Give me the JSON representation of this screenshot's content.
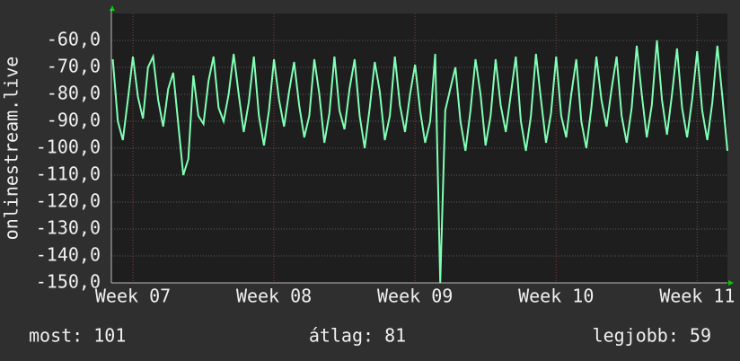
{
  "chart_data": {
    "type": "line",
    "y_label": "onlinestream.live",
    "xlim": [
      -1.07,
      29.5
    ],
    "xticks": [
      {
        "value": 0,
        "label": "Week 07"
      },
      {
        "value": 7,
        "label": "Week 08"
      },
      {
        "value": 14,
        "label": "Week 09"
      },
      {
        "value": 21,
        "label": "Week 10"
      },
      {
        "value": 28,
        "label": "Week 11"
      }
    ],
    "ylim": [
      -150,
      -50
    ],
    "yticks": [
      {
        "value": -150,
        "label": "-150,0"
      },
      {
        "value": -140,
        "label": "-140,0"
      },
      {
        "value": -130,
        "label": "-130,0"
      },
      {
        "value": -120,
        "label": "-120,0"
      },
      {
        "value": -110,
        "label": "-110,0"
      },
      {
        "value": -100,
        "label": "-100,0"
      },
      {
        "value": -90,
        "label": "-90,0"
      },
      {
        "value": -80,
        "label": "-80,0"
      },
      {
        "value": -70,
        "label": "-70,0"
      },
      {
        "value": -60,
        "label": "-60,0"
      }
    ],
    "grid": true,
    "x": [
      -1,
      -0.75,
      -0.5,
      -0.25,
      0,
      0.25,
      0.5,
      0.75,
      1,
      1.25,
      1.5,
      1.75,
      2,
      2.25,
      2.5,
      2.75,
      3,
      3.25,
      3.5,
      3.75,
      4,
      4.25,
      4.5,
      4.75,
      5,
      5.25,
      5.5,
      5.75,
      6,
      6.25,
      6.5,
      6.75,
      7,
      7.25,
      7.5,
      7.75,
      8,
      8.25,
      8.5,
      8.75,
      9,
      9.25,
      9.5,
      9.75,
      10,
      10.25,
      10.5,
      10.75,
      11,
      11.25,
      11.5,
      11.75,
      12,
      12.25,
      12.5,
      12.75,
      13,
      13.25,
      13.5,
      13.75,
      14,
      14.25,
      14.5,
      14.75,
      15,
      15.25,
      15.5,
      15.75,
      16,
      16.25,
      16.5,
      16.75,
      17,
      17.25,
      17.5,
      17.75,
      18,
      18.25,
      18.5,
      18.75,
      19,
      19.25,
      19.5,
      19.75,
      20,
      20.25,
      20.5,
      20.75,
      21,
      21.25,
      21.5,
      21.75,
      22,
      22.25,
      22.5,
      22.75,
      23,
      23.25,
      23.5,
      23.75,
      24,
      24.25,
      24.5,
      24.75,
      25,
      25.25,
      25.5,
      25.75,
      26,
      26.25,
      26.5,
      26.75,
      27,
      27.25,
      27.5,
      27.75,
      28,
      28.25,
      28.5,
      28.75,
      29,
      29.25,
      29.5
    ],
    "series": [
      {
        "color": "#80ffb4",
        "values": [
          -67,
          -90,
          -97,
          -82,
          -66,
          -81,
          -89,
          -70,
          -66,
          -82,
          -92,
          -78,
          -72,
          -91,
          -110,
          -104,
          -73,
          -88,
          -91,
          -75,
          -66,
          -85,
          -90,
          -80,
          -65,
          -80,
          -94,
          -83,
          -66,
          -88,
          -99,
          -86,
          -67,
          -82,
          -92,
          -79,
          -68,
          -84,
          -96,
          -88,
          -67,
          -80,
          -98,
          -87,
          -66,
          -86,
          -93,
          -78,
          -67,
          -88,
          -100,
          -85,
          -68,
          -79,
          -97,
          -88,
          -66,
          -84,
          -94,
          -80,
          -69,
          -86,
          -98,
          -90,
          -65,
          -150,
          -86,
          -78,
          -70,
          -90,
          -101,
          -86,
          -67,
          -80,
          -99,
          -88,
          -67,
          -84,
          -94,
          -80,
          -66,
          -90,
          -101,
          -88,
          -65,
          -82,
          -98,
          -87,
          -66,
          -88,
          -96,
          -80,
          -67,
          -90,
          -100,
          -85,
          -66,
          -82,
          -92,
          -78,
          -66,
          -88,
          -98,
          -85,
          -62,
          -80,
          -96,
          -84,
          -60,
          -82,
          -95,
          -80,
          -63,
          -85,
          -96,
          -82,
          -64,
          -86,
          -97,
          -83,
          -62,
          -81,
          -101
        ]
      }
    ]
  },
  "footer": {
    "current": "most: 101",
    "average": "átlag: 81",
    "max": "legjobb: 59"
  }
}
